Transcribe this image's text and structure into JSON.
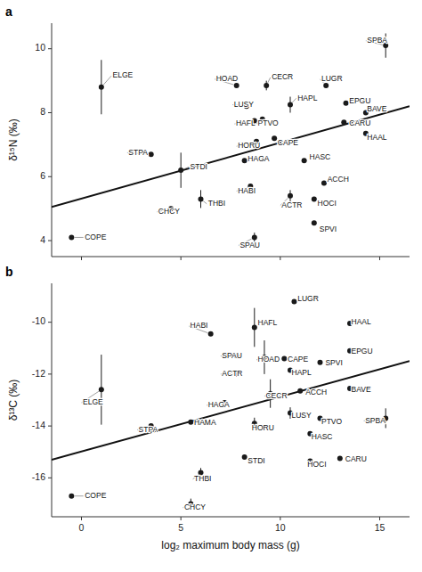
{
  "chart_data": [
    {
      "type": "scatter",
      "title": "a",
      "ylabel": "δ¹⁵N (‰)",
      "xlim": [
        -1.5,
        16.5
      ],
      "xticks": [
        0,
        5,
        10,
        15
      ],
      "ylim": [
        3.5,
        10.8
      ],
      "yticks": [
        4,
        6,
        8,
        10
      ],
      "tick_labels": "y",
      "color": "#1a1a1a",
      "x": [
        -0.5,
        1.0,
        3.5,
        5.0,
        4.5,
        6.0,
        8.5,
        8.2,
        7.8,
        8.3,
        8.7,
        8.8,
        9.1,
        9.3,
        9.7,
        10.5,
        11.2,
        11.7,
        12.2,
        8.7,
        11.7,
        10.5,
        12.3,
        13.3,
        13.2,
        14.3,
        14.3,
        15.3
      ],
      "values": [
        4.1,
        8.8,
        6.7,
        6.2,
        5.0,
        5.3,
        5.7,
        6.5,
        8.85,
        8.2,
        7.75,
        7.1,
        7.8,
        8.85,
        7.2,
        5.4,
        6.5,
        5.3,
        5.8,
        4.1,
        4.55,
        8.25,
        8.85,
        8.3,
        7.7,
        8.0,
        7.35,
        10.1
      ],
      "error_bars": {
        "x": [
          1.0,
          5.0,
          6.0,
          9.3,
          10.5,
          10.5,
          8.7,
          15.3
        ],
        "values": [
          8.8,
          6.2,
          5.3,
          8.85,
          8.25,
          5.4,
          4.1,
          10.1
        ],
        "errors": [
          0.85,
          0.55,
          0.28,
          0.15,
          0.25,
          0.18,
          0.15,
          0.38
        ]
      },
      "regression": {
        "x": [
          -1.5,
          16.5
        ],
        "values": [
          5.05,
          8.2
        ],
        "color": "#111111"
      },
      "annotations": [
        {
          "text": "COPE",
          "x": -0.5,
          "y": 4.1,
          "label_x": 0.1,
          "label_y": 4.1
        },
        {
          "text": "ELGE",
          "x": 1.0,
          "y": 8.8,
          "label_x": 1.5,
          "label_y": 9.15
        },
        {
          "text": "STPA",
          "x": 3.5,
          "y": 6.7,
          "label_x": 2.3,
          "label_y": 6.75
        },
        {
          "text": "STDI",
          "x": 5.0,
          "y": 6.2,
          "label_x": 5.4,
          "label_y": 6.3
        },
        {
          "text": "CHCY",
          "x": 4.5,
          "y": 5.0,
          "label_x": 3.8,
          "label_y": 4.9
        },
        {
          "text": "THBI",
          "x": 6.0,
          "y": 5.3,
          "label_x": 6.3,
          "label_y": 5.15
        },
        {
          "text": "HABI",
          "x": 8.5,
          "y": 5.7,
          "label_x": 7.8,
          "label_y": 5.55
        },
        {
          "text": "HAGA",
          "x": 8.2,
          "y": 6.5,
          "label_x": 8.3,
          "label_y": 6.55
        },
        {
          "text": "HOAD",
          "x": 7.8,
          "y": 8.85,
          "label_x": 6.7,
          "label_y": 9.05
        },
        {
          "text": "LUSY",
          "x": 8.3,
          "y": 8.2,
          "label_x": 7.6,
          "label_y": 8.25
        },
        {
          "text": "HAFL",
          "x": 8.7,
          "y": 7.75,
          "label_x": 7.7,
          "label_y": 7.65
        },
        {
          "text": "HORU",
          "x": 8.8,
          "y": 7.1,
          "label_x": 7.8,
          "label_y": 6.95
        },
        {
          "text": "PTVO",
          "x": 9.1,
          "y": 7.8,
          "label_x": 8.8,
          "label_y": 7.65
        },
        {
          "text": "CECR",
          "x": 9.3,
          "y": 8.85,
          "label_x": 9.5,
          "label_y": 9.1
        },
        {
          "text": "CAPE",
          "x": 9.7,
          "y": 7.2,
          "label_x": 9.8,
          "label_y": 7.05
        },
        {
          "text": "ACTR",
          "x": 10.5,
          "y": 5.4,
          "label_x": 10.0,
          "label_y": 5.1
        },
        {
          "text": "HASC",
          "x": 11.2,
          "y": 6.5,
          "label_x": 11.4,
          "label_y": 6.6
        },
        {
          "text": "HOCI",
          "x": 11.7,
          "y": 5.3,
          "label_x": 11.8,
          "label_y": 5.15
        },
        {
          "text": "ACCH",
          "x": 12.2,
          "y": 5.8,
          "label_x": 12.3,
          "label_y": 5.9
        },
        {
          "text": "SPAU",
          "x": 8.7,
          "y": 4.1,
          "label_x": 7.9,
          "label_y": 3.85
        },
        {
          "text": "SPVI",
          "x": 11.7,
          "y": 4.55,
          "label_x": 11.9,
          "label_y": 4.35
        },
        {
          "text": "HAPL",
          "x": 10.5,
          "y": 8.25,
          "label_x": 10.8,
          "label_y": 8.45
        },
        {
          "text": "LUGR",
          "x": 12.3,
          "y": 8.85,
          "label_x": 12.0,
          "label_y": 9.05
        },
        {
          "text": "EPGU",
          "x": 13.3,
          "y": 8.3,
          "label_x": 13.4,
          "label_y": 8.35
        },
        {
          "text": "CARU",
          "x": 13.2,
          "y": 7.7,
          "label_x": 13.4,
          "label_y": 7.65
        },
        {
          "text": "BAVE",
          "x": 14.3,
          "y": 8.0,
          "label_x": 14.3,
          "label_y": 8.1
        },
        {
          "text": "HAAL",
          "x": 14.3,
          "y": 7.35,
          "label_x": 14.3,
          "label_y": 7.2
        },
        {
          "text": "SPBA",
          "x": 15.3,
          "y": 10.1,
          "label_x": 14.3,
          "label_y": 10.25
        }
      ]
    },
    {
      "type": "scatter",
      "title": "b",
      "ylabel": "δ¹³C (‰)",
      "xlabel": "log₂ maximum body mass (g)",
      "xlim": [
        -1.5,
        16.5
      ],
      "xticks": [
        0,
        5,
        10,
        15
      ],
      "ylim": [
        -17.5,
        -8.5
      ],
      "yticks": [
        -16,
        -14,
        -12,
        -10
      ],
      "color": "#1a1a1a",
      "x": [
        -0.5,
        1.0,
        3.5,
        5.5,
        5.5,
        6.0,
        6.5,
        7.2,
        7.8,
        7.8,
        8.2,
        8.7,
        8.7,
        9.2,
        9.5,
        10.2,
        10.5,
        10.5,
        11.0,
        11.5,
        11.5,
        12.0,
        12.0,
        13.0,
        13.5,
        13.5,
        10.7,
        13.5,
        15.3
      ],
      "values": [
        -16.7,
        -12.6,
        -14.0,
        -13.85,
        -17.0,
        -15.8,
        -10.45,
        -13.1,
        -11.3,
        -12.0,
        -15.2,
        -13.9,
        -10.2,
        -11.35,
        -12.75,
        -11.4,
        -13.5,
        -11.85,
        -12.65,
        -14.3,
        -15.35,
        -13.7,
        -11.55,
        -15.25,
        -12.55,
        -11.1,
        -9.2,
        -10.05,
        -13.7
      ],
      "error_bars": {
        "x": [
          1.0,
          5.5,
          6.0,
          8.7,
          8.7,
          9.2,
          9.5,
          10.5,
          15.3
        ],
        "values": [
          -12.6,
          -17.0,
          -15.8,
          -10.2,
          -13.9,
          -11.35,
          -12.75,
          -13.5,
          -13.7
        ],
        "errors": [
          1.35,
          0.2,
          0.18,
          0.75,
          0.22,
          0.65,
          0.55,
          0.22,
          0.38
        ]
      },
      "regression": {
        "x": [
          -1.5,
          16.5
        ],
        "values": [
          -15.3,
          -11.5
        ],
        "color": "#111111"
      },
      "annotations": [
        {
          "text": "COPE",
          "x": -0.5,
          "y": -16.7,
          "label_x": 0.1,
          "label_y": -16.7
        },
        {
          "text": "ELGE",
          "x": 1.0,
          "y": -12.6,
          "label_x": 0.0,
          "label_y": -13.1
        },
        {
          "text": "STPA",
          "x": 3.5,
          "y": -14.0,
          "label_x": 2.8,
          "label_y": -14.15
        },
        {
          "text": "HAMA",
          "x": 5.5,
          "y": -13.85,
          "label_x": 5.6,
          "label_y": -13.9
        },
        {
          "text": "CHCY",
          "x": 5.5,
          "y": -17.0,
          "label_x": 5.1,
          "label_y": -17.15
        },
        {
          "text": "THBI",
          "x": 6.0,
          "y": -15.8,
          "label_x": 5.6,
          "label_y": -16.05
        },
        {
          "text": "HABI",
          "x": 6.5,
          "y": -10.45,
          "label_x": 5.4,
          "label_y": -10.15
        },
        {
          "text": "HAGA",
          "x": 7.2,
          "y": -13.1,
          "label_x": 6.3,
          "label_y": -13.2
        },
        {
          "text": "SPAU",
          "x": 7.8,
          "y": -11.3,
          "label_x": 7.0,
          "label_y": -11.3
        },
        {
          "text": "ACTR",
          "x": 7.8,
          "y": -12.0,
          "label_x": 7.0,
          "label_y": -12.0
        },
        {
          "text": "STDI",
          "x": 8.2,
          "y": -15.2,
          "label_x": 8.3,
          "label_y": -15.35
        },
        {
          "text": "HORU",
          "x": 8.7,
          "y": -13.9,
          "label_x": 8.5,
          "label_y": -14.1
        },
        {
          "text": "HAFL",
          "x": 8.7,
          "y": -10.2,
          "label_x": 8.8,
          "label_y": -10.05
        },
        {
          "text": "HOAD",
          "x": 9.2,
          "y": -11.35,
          "label_x": 8.8,
          "label_y": -11.45
        },
        {
          "text": "CECR",
          "x": 9.5,
          "y": -12.75,
          "label_x": 9.2,
          "label_y": -12.85
        },
        {
          "text": "CAPE",
          "x": 10.2,
          "y": -11.4,
          "label_x": 10.3,
          "label_y": -11.45
        },
        {
          "text": "LUSY",
          "x": 10.5,
          "y": -13.5,
          "label_x": 10.5,
          "label_y": -13.6
        },
        {
          "text": "HAPL",
          "x": 10.5,
          "y": -11.85,
          "label_x": 10.5,
          "label_y": -11.95
        },
        {
          "text": "ACCH",
          "x": 11.0,
          "y": -12.65,
          "label_x": 11.2,
          "label_y": -12.7
        },
        {
          "text": "HASC",
          "x": 11.5,
          "y": -14.3,
          "label_x": 11.5,
          "label_y": -14.45
        },
        {
          "text": "HOCI",
          "x": 11.5,
          "y": -15.35,
          "label_x": 11.3,
          "label_y": -15.5
        },
        {
          "text": "PTVO",
          "x": 12.0,
          "y": -13.7,
          "label_x": 12.0,
          "label_y": -13.85
        },
        {
          "text": "SPVI",
          "x": 12.0,
          "y": -11.55,
          "label_x": 12.2,
          "label_y": -11.6
        },
        {
          "text": "CARU",
          "x": 13.0,
          "y": -15.25,
          "label_x": 13.2,
          "label_y": -15.3
        },
        {
          "text": "BAVE",
          "x": 13.5,
          "y": -12.55,
          "label_x": 13.5,
          "label_y": -12.6
        },
        {
          "text": "EPGU",
          "x": 13.5,
          "y": -11.1,
          "label_x": 13.5,
          "label_y": -11.15
        },
        {
          "text": "LUGR",
          "x": 10.7,
          "y": -9.2,
          "label_x": 10.8,
          "label_y": -9.1
        },
        {
          "text": "HAAL",
          "x": 13.5,
          "y": -10.05,
          "label_x": 13.5,
          "label_y": -10.0
        },
        {
          "text": "SPBA",
          "x": 15.3,
          "y": -13.7,
          "label_x": 14.2,
          "label_y": -13.8
        }
      ]
    }
  ]
}
